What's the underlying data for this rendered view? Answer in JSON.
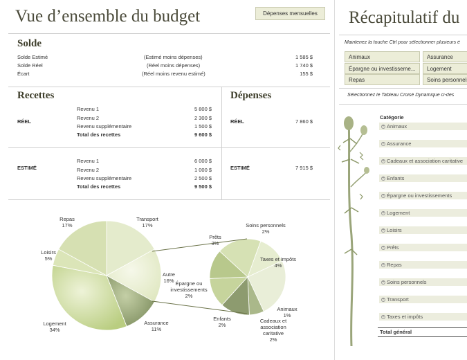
{
  "left": {
    "title": "Vue d’ensemble du budget",
    "monthly_button": "Dépenses mensuelles",
    "solde": {
      "heading": "Solde",
      "rows": [
        {
          "label": "Solde Estimé",
          "note": "(Estimé moins dépenses)",
          "value": "1 585 $"
        },
        {
          "label": "Solde Réel",
          "note": "(Réel moins dépenses)",
          "value": "1 740 $"
        },
        {
          "label": "Écart",
          "note": "(Réel moins revenu estimé)",
          "value": "155 $"
        }
      ]
    },
    "recettes": {
      "heading": "Recettes",
      "reel": {
        "label": "RÉEL",
        "rows": [
          {
            "label": "Revenu 1",
            "value": "5 800 $"
          },
          {
            "label": "Revenu 2",
            "value": "2 300 $"
          },
          {
            "label": "Revenu supplémentaire",
            "value": "1 500 $"
          }
        ],
        "total_label": "Total des recettes",
        "total_value": "9 600 $"
      },
      "estime": {
        "label": "ESTIMÉ",
        "rows": [
          {
            "label": "Revenu 1",
            "value": "6 000 $"
          },
          {
            "label": "Revenu 2",
            "value": "1 000 $"
          },
          {
            "label": "Revenu supplémentaire",
            "value": "2 500 $"
          }
        ],
        "total_label": "Total des recettes",
        "total_value": "9 500 $"
      }
    },
    "depenses": {
      "heading": "Dépenses",
      "reel": {
        "label": "RÉEL",
        "value": "7 860 $"
      },
      "estime": {
        "label": "ESTIMÉ",
        "value": "7 915 $"
      }
    }
  },
  "right": {
    "title": "Récapitulatif du",
    "instruction": "Maintenez la touche Ctrl pour sélectionner plusieurs é",
    "filters": [
      "Animaux",
      "Assurance",
      "Épargne ou investisseme...",
      "Logement",
      "Repas",
      "Soins personnels"
    ],
    "pivot_note": "Sélectionnez le Tableau Croisé Dynamique ci-des",
    "category_header": "Catégorie",
    "categories": [
      "Animaux",
      "Assurance",
      "Cadeaux et association caritative",
      "Enfants",
      "Épargne ou investissements",
      "Logement",
      "Loisirs",
      "Prêts",
      "Repas",
      "Soins personnels",
      "Transport",
      "Taxes et impôts"
    ],
    "total_label": "Total général"
  },
  "chart_data": {
    "type": "pie",
    "variant": "pie-of-pie",
    "main_slices": [
      {
        "label": "Transport",
        "value": 17
      },
      {
        "label": "Autre",
        "value": 16
      },
      {
        "label": "Assurance",
        "value": 11
      },
      {
        "label": "Logement",
        "value": 34
      },
      {
        "label": "Loisirs",
        "value": 5
      },
      {
        "label": "Repas",
        "value": 17
      }
    ],
    "secondary_slices": [
      {
        "label": "Soins personnels",
        "value": 2
      },
      {
        "label": "Taxes et impôts",
        "value": 4
      },
      {
        "label": "Animaux",
        "value": 1
      },
      {
        "label": "Cadeaux et association caritative",
        "value": 2
      },
      {
        "label": "Enfants",
        "value": 2
      },
      {
        "label": "Épargne ou investissements",
        "value": 2
      },
      {
        "label": "Prêts",
        "value": 3
      }
    ],
    "data_labels": [
      {
        "name": "Repas",
        "pct": "17%"
      },
      {
        "name": "Transport",
        "pct": "17%"
      },
      {
        "name": "Loisirs",
        "pct": "5%"
      },
      {
        "name": "Autre",
        "pct": "16%"
      },
      {
        "name": "Logement",
        "pct": "34%"
      },
      {
        "name": "Assurance",
        "pct": "11%"
      },
      {
        "name": "Prêts",
        "pct": "3%"
      },
      {
        "name": "Soins personnels",
        "pct": "2%"
      },
      {
        "name": "Taxes et impôts",
        "pct": "4%"
      },
      {
        "name": "Épargne ou investissements",
        "pct": "2%"
      },
      {
        "name": "Animaux",
        "pct": "1%"
      },
      {
        "name": "Enfants",
        "pct": "2%"
      },
      {
        "name": "Cadeaux et association caritative",
        "pct": "2%"
      }
    ],
    "colors": {
      "light": "#f1f4e2",
      "mid": "#c9d99a",
      "dark": "#8a9a6e",
      "accent": "#5d6a3d"
    }
  }
}
